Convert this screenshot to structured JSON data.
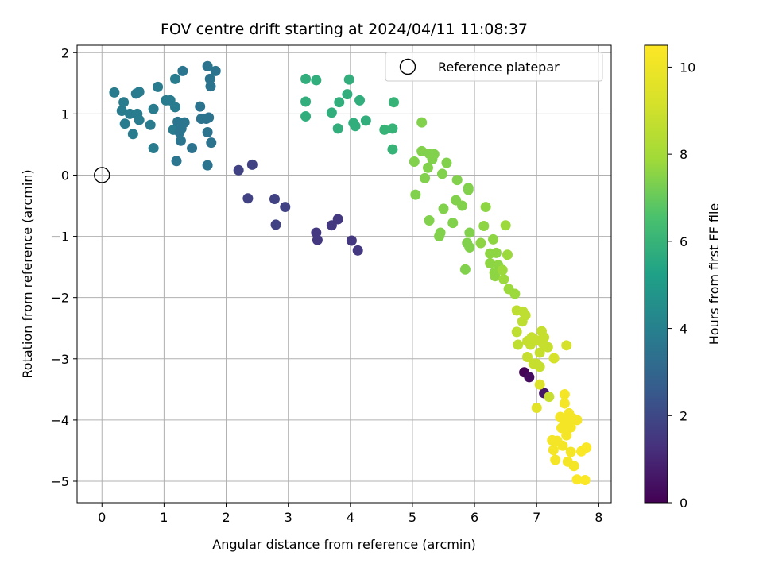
{
  "chart_data": {
    "type": "scatter",
    "title": "FOV centre drift starting at 2024/04/11 11:08:37",
    "xlabel": "Angular distance from reference (arcmin)",
    "ylabel": "Rotation from reference (arcmin)",
    "xlim": [
      -0.4,
      8.2
    ],
    "ylim": [
      -5.35,
      2.12
    ],
    "xticks": [
      0,
      1,
      2,
      3,
      4,
      5,
      6,
      7,
      8
    ],
    "yticks": [
      2,
      1,
      0,
      -1,
      -2,
      -3,
      -4,
      -5
    ],
    "grid": true,
    "legend": {
      "position": "top-right",
      "entries": [
        "Reference platepar"
      ]
    },
    "reference_point": {
      "x": 0,
      "y": 0,
      "marker": "open-circle"
    },
    "colorbar": {
      "label": "Hours from first FF file",
      "colormap": "viridis",
      "range": [
        0,
        10.5
      ],
      "ticks": [
        0,
        2,
        4,
        6,
        8,
        10
      ]
    },
    "series": [
      {
        "points": [
          [
            6.8,
            -3.22,
            0.1
          ],
          [
            6.88,
            -3.3,
            0.3
          ],
          [
            7.12,
            -3.56,
            0.6
          ],
          [
            2.2,
            0.08,
            1.8
          ],
          [
            2.35,
            -0.38,
            1.8
          ],
          [
            2.42,
            0.17,
            1.8
          ],
          [
            2.78,
            -0.39,
            1.8
          ],
          [
            2.8,
            -0.81,
            1.8
          ],
          [
            2.95,
            -0.52,
            1.8
          ],
          [
            3.45,
            -0.94,
            1.5
          ],
          [
            3.47,
            -1.06,
            1.5
          ],
          [
            3.7,
            -0.82,
            1.5
          ],
          [
            3.8,
            -0.72,
            1.5
          ],
          [
            4.02,
            -1.07,
            1.5
          ],
          [
            4.12,
            -1.23,
            1.5
          ],
          [
            0.2,
            1.35,
            3.8
          ],
          [
            0.32,
            1.05,
            3.8
          ],
          [
            0.35,
            1.19,
            3.8
          ],
          [
            0.37,
            0.84,
            3.8
          ],
          [
            0.45,
            1.0,
            3.8
          ],
          [
            0.5,
            0.67,
            3.8
          ],
          [
            0.55,
            1.33,
            3.8
          ],
          [
            0.57,
            1.0,
            3.8
          ],
          [
            0.6,
            0.9,
            3.8
          ],
          [
            0.6,
            1.36,
            3.8
          ],
          [
            0.78,
            0.82,
            3.8
          ],
          [
            0.83,
            1.08,
            3.8
          ],
          [
            0.83,
            0.44,
            3.8
          ],
          [
            0.9,
            1.44,
            3.8
          ],
          [
            1.03,
            1.22,
            3.8
          ],
          [
            1.1,
            1.22,
            3.8
          ],
          [
            1.15,
            0.74,
            3.8
          ],
          [
            1.18,
            1.57,
            3.8
          ],
          [
            1.18,
            1.11,
            3.8
          ],
          [
            1.2,
            0.23,
            3.6
          ],
          [
            1.22,
            0.87,
            3.6
          ],
          [
            1.25,
            0.7,
            3.6
          ],
          [
            1.27,
            0.56,
            3.6
          ],
          [
            1.28,
            0.76,
            3.6
          ],
          [
            1.3,
            1.7,
            3.6
          ],
          [
            1.33,
            0.86,
            3.6
          ],
          [
            1.45,
            0.44,
            3.5
          ],
          [
            1.58,
            1.12,
            3.5
          ],
          [
            1.6,
            0.92,
            3.5
          ],
          [
            1.68,
            0.92,
            3.5
          ],
          [
            1.7,
            1.78,
            3.5
          ],
          [
            1.7,
            0.7,
            3.5
          ],
          [
            1.7,
            0.16,
            3.5
          ],
          [
            1.72,
            0.94,
            3.5
          ],
          [
            1.74,
            1.57,
            3.5
          ],
          [
            1.75,
            1.45,
            3.5
          ],
          [
            1.76,
            0.53,
            3.5
          ],
          [
            1.83,
            1.7,
            3.5
          ],
          [
            3.28,
            1.57,
            5.8
          ],
          [
            3.28,
            1.2,
            5.8
          ],
          [
            3.28,
            0.96,
            5.8
          ],
          [
            3.45,
            1.55,
            5.8
          ],
          [
            3.7,
            1.02,
            5.8
          ],
          [
            3.8,
            0.76,
            5.8
          ],
          [
            3.82,
            1.19,
            5.8
          ],
          [
            3.95,
            1.32,
            5.8
          ],
          [
            3.98,
            1.56,
            5.8
          ],
          [
            4.05,
            0.85,
            5.8
          ],
          [
            4.08,
            0.8,
            5.8
          ],
          [
            4.15,
            1.22,
            5.8
          ],
          [
            4.25,
            0.89,
            5.8
          ],
          [
            4.55,
            0.74,
            6.0
          ],
          [
            4.68,
            0.76,
            6.0
          ],
          [
            4.68,
            0.42,
            6.0
          ],
          [
            4.7,
            1.19,
            6.0
          ],
          [
            5.03,
            0.22,
            7.4
          ],
          [
            5.05,
            -0.32,
            7.4
          ],
          [
            5.15,
            0.86,
            7.4
          ],
          [
            5.15,
            0.39,
            7.4
          ],
          [
            5.2,
            -0.05,
            7.4
          ],
          [
            5.25,
            0.12,
            7.4
          ],
          [
            5.27,
            0.35,
            7.4
          ],
          [
            5.27,
            -0.74,
            7.4
          ],
          [
            5.32,
            0.26,
            7.4
          ],
          [
            5.35,
            0.34,
            7.4
          ],
          [
            5.43,
            -1.0,
            7.4
          ],
          [
            5.45,
            -0.94,
            7.4
          ],
          [
            5.48,
            0.02,
            7.4
          ],
          [
            5.5,
            -0.55,
            7.4
          ],
          [
            5.55,
            0.2,
            7.4
          ],
          [
            5.65,
            -0.78,
            7.4
          ],
          [
            5.7,
            -0.41,
            7.4
          ],
          [
            5.72,
            -0.08,
            7.4
          ],
          [
            5.8,
            -0.5,
            7.4
          ],
          [
            5.85,
            -1.54,
            7.4
          ],
          [
            5.88,
            -1.11,
            7.4
          ],
          [
            5.9,
            -0.21,
            7.4
          ],
          [
            5.9,
            -0.24,
            7.4
          ],
          [
            5.92,
            -0.94,
            7.4
          ],
          [
            5.92,
            -1.18,
            7.4
          ],
          [
            6.1,
            -1.11,
            7.6
          ],
          [
            6.15,
            -0.83,
            7.6
          ],
          [
            6.18,
            -0.52,
            7.6
          ],
          [
            6.25,
            -1.28,
            7.6
          ],
          [
            6.25,
            -1.44,
            7.6
          ],
          [
            6.3,
            -1.05,
            7.6
          ],
          [
            6.32,
            -1.59,
            7.6
          ],
          [
            6.33,
            -1.65,
            7.6
          ],
          [
            6.35,
            -1.27,
            7.6
          ],
          [
            6.38,
            -1.47,
            7.6
          ],
          [
            6.45,
            -1.55,
            7.8
          ],
          [
            6.47,
            -1.7,
            7.8
          ],
          [
            6.5,
            -0.82,
            7.8
          ],
          [
            6.53,
            -1.3,
            7.8
          ],
          [
            6.55,
            -1.86,
            7.8
          ],
          [
            6.65,
            -1.94,
            7.8
          ],
          [
            6.68,
            -2.21,
            8.6
          ],
          [
            6.68,
            -2.56,
            8.6
          ],
          [
            6.7,
            -2.77,
            8.6
          ],
          [
            6.77,
            -2.39,
            8.6
          ],
          [
            6.78,
            -2.23,
            8.6
          ],
          [
            6.82,
            -2.29,
            8.6
          ],
          [
            6.85,
            -2.71,
            8.8
          ],
          [
            6.85,
            -2.97,
            8.8
          ],
          [
            6.9,
            -2.77,
            8.8
          ],
          [
            6.92,
            -2.65,
            8.8
          ],
          [
            6.95,
            -3.08,
            8.8
          ],
          [
            7.0,
            -3.08,
            8.8
          ],
          [
            7.0,
            -2.7,
            8.8
          ],
          [
            7.05,
            -3.13,
            8.8
          ],
          [
            7.05,
            -2.9,
            8.8
          ],
          [
            7.08,
            -2.55,
            8.8
          ],
          [
            7.1,
            -2.75,
            8.8
          ],
          [
            7.12,
            -2.65,
            8.8
          ],
          [
            7.18,
            -2.81,
            8.8
          ],
          [
            7.2,
            -3.62,
            8.8
          ],
          [
            7.0,
            -3.8,
            9.6
          ],
          [
            7.05,
            -3.42,
            9.4
          ],
          [
            7.28,
            -2.99,
            9.2
          ],
          [
            7.48,
            -2.78,
            9.2
          ],
          [
            7.25,
            -4.33,
            10.2
          ],
          [
            7.27,
            -4.49,
            10.2
          ],
          [
            7.3,
            -4.65,
            10.2
          ],
          [
            7.33,
            -4.34,
            10.2
          ],
          [
            7.38,
            -3.95,
            10.2
          ],
          [
            7.4,
            -4.13,
            10.2
          ],
          [
            7.42,
            -4.42,
            10.2
          ],
          [
            7.45,
            -3.58,
            10.2
          ],
          [
            7.45,
            -3.73,
            10.2
          ],
          [
            7.45,
            -4.03,
            10.2
          ],
          [
            7.48,
            -4.25,
            10.2
          ],
          [
            7.5,
            -4.68,
            10.2
          ],
          [
            7.52,
            -3.89,
            10.2
          ],
          [
            7.55,
            -4.52,
            10.2
          ],
          [
            7.55,
            -4.12,
            10.2
          ],
          [
            7.58,
            -3.97,
            10.2
          ],
          [
            7.6,
            -4.75,
            10.2
          ],
          [
            7.65,
            -4.0,
            10.2
          ],
          [
            7.65,
            -4.97,
            10.4
          ],
          [
            7.72,
            -4.51,
            10.4
          ],
          [
            7.78,
            -4.98,
            10.4
          ],
          [
            7.8,
            -4.45,
            10.4
          ]
        ]
      }
    ]
  }
}
